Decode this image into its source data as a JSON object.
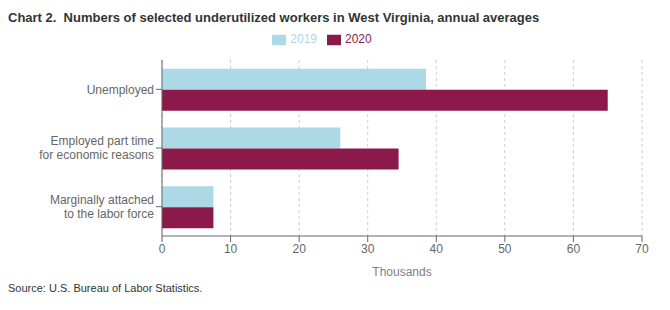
{
  "chart_data": {
    "type": "bar",
    "orientation": "horizontal",
    "title": "Chart 2.  Numbers of selected underutilized workers in West Virginia, annual averages",
    "categories": [
      "Unemployed",
      "Employed part time\nfor economic reasons",
      "Marginally attached\nto the labor force"
    ],
    "series": [
      {
        "name": "2019",
        "color": "#add8e6",
        "values": [
          38.5,
          26.0,
          7.5
        ]
      },
      {
        "name": "2020",
        "color": "#8b1a4a",
        "values": [
          65.0,
          34.5,
          7.5
        ]
      }
    ],
    "xlim": [
      0,
      70
    ],
    "xticks": [
      0,
      10,
      20,
      30,
      40,
      50,
      60,
      70
    ],
    "xlabel": "Thousands",
    "annotations": [
      "Source: U.S. Bureau of Labor Statistics."
    ],
    "grid": true,
    "legend": "top"
  }
}
